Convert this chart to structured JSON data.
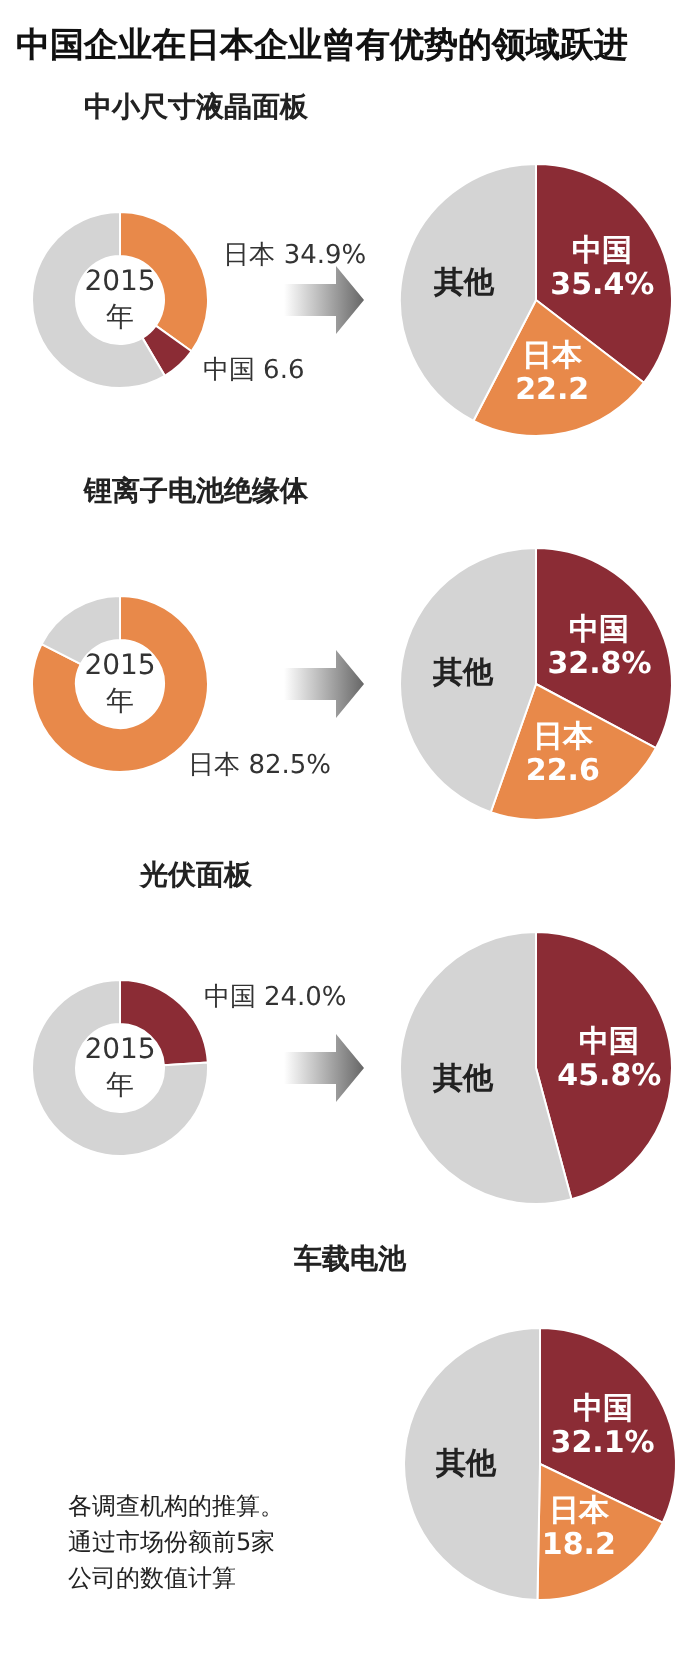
{
  "chart_data": [
    {
      "type": "other",
      "title": "中国企业在日本企业曾有优势的领域跃进"
    },
    {
      "type": "donut",
      "title": "中小尺寸液晶面板",
      "annotations": [
        "2015\n年"
      ],
      "categories": [
        "日本",
        "中国",
        null
      ],
      "values": [
        34.9,
        6.6,
        58.5
      ],
      "colors": [
        "#e8894a",
        "#8b2c35",
        "#d4d4d4"
      ],
      "value_labels": [
        "34.9%",
        "6.6",
        null
      ]
    },
    {
      "type": "pie",
      "categories": [
        "中国",
        "日本",
        "其他"
      ],
      "values": [
        35.4,
        22.2,
        42.4
      ],
      "colors": [
        "#8b2c35",
        "#e8894a",
        "#d4d4d4"
      ],
      "value_labels": [
        "35.4%",
        "22.2",
        null
      ]
    },
    {
      "type": "donut",
      "title": "锂离子电池绝缘体",
      "annotations": [
        "2015\n年"
      ],
      "categories": [
        "日本",
        null
      ],
      "values": [
        82.5,
        17.5
      ],
      "colors": [
        "#e8894a",
        "#d4d4d4"
      ],
      "value_labels": [
        "82.5%",
        null
      ]
    },
    {
      "type": "pie",
      "categories": [
        "中国",
        "日本",
        "其他"
      ],
      "values": [
        32.8,
        22.6,
        44.6
      ],
      "colors": [
        "#8b2c35",
        "#e8894a",
        "#d4d4d4"
      ],
      "value_labels": [
        "32.8%",
        "22.6",
        null
      ]
    },
    {
      "type": "donut",
      "title": "光伏面板",
      "annotations": [
        "2015\n年"
      ],
      "categories": [
        "中国",
        null
      ],
      "values": [
        24.0,
        76.0
      ],
      "colors": [
        "#8b2c35",
        "#d4d4d4"
      ],
      "value_labels": [
        "24.0%",
        null
      ]
    },
    {
      "type": "pie",
      "categories": [
        "中国",
        "其他"
      ],
      "values": [
        45.8,
        54.2
      ],
      "colors": [
        "#8b2c35",
        "#d4d4d4"
      ],
      "value_labels": [
        "45.8%",
        null
      ]
    },
    {
      "type": "pie",
      "title": "车载电池",
      "annotations": [
        "各调查机构的推算。通过市场份额前5家公司的数值计算"
      ],
      "categories": [
        "中国",
        "日本",
        "其他"
      ],
      "values": [
        32.1,
        18.2,
        49.7
      ],
      "colors": [
        "#8b2c35",
        "#e8894a",
        "#d4d4d4"
      ],
      "value_labels": [
        "32.1%",
        "18.2",
        null
      ]
    }
  ]
}
